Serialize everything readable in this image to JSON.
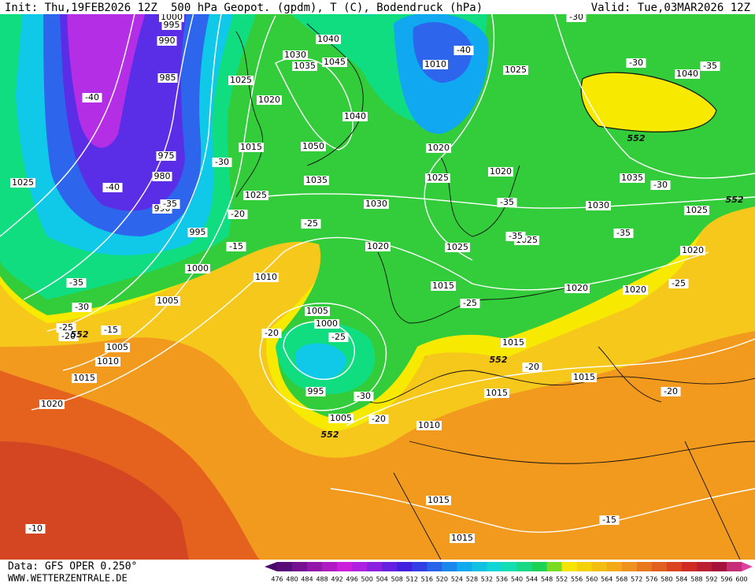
{
  "header": {
    "init": "Init: Thu,19FEB2026 12Z",
    "title": "500 hPa Geopot. (gpdm), T (C), Bodendruck (hPa)",
    "valid": "Valid: Tue,03MAR2026 12Z"
  },
  "footer": {
    "data": "Data: GFS OPER 0.250°",
    "site": "WWW.WETTERZENTRALE.DE"
  },
  "isobar_labels": [
    1000,
    995,
    990,
    985,
    975,
    980,
    990,
    995,
    1000,
    1005,
    1040,
    1030,
    1035,
    1045,
    1025,
    1020,
    1040,
    1050,
    1015,
    1035,
    1025,
    1030,
    1010,
    1025,
    1020,
    1020,
    1025,
    1025,
    1025,
    1020,
    1015,
    1010,
    1005,
    1000,
    995,
    1005,
    1010,
    1015,
    1015,
    1015,
    1020,
    1020,
    1020,
    1030,
    1025,
    1035,
    1040,
    1025,
    1005,
    1010,
    1015,
    1020,
    1015,
    1015
  ],
  "temperature_labels": [
    -30,
    -40,
    -30,
    -35,
    -40,
    -30,
    -40,
    -35,
    -20,
    -25,
    -15,
    -35,
    -35,
    -30,
    -35,
    -25,
    -35,
    -30,
    -25,
    -20,
    -15,
    -20,
    -25,
    -30,
    -20,
    -25,
    -20,
    -20,
    -10,
    -15
  ],
  "height_labels": [
    552,
    552,
    552,
    552,
    552
  ],
  "colorbar": [
    476,
    480,
    484,
    488,
    492,
    496,
    500,
    504,
    508,
    512,
    516,
    520,
    524,
    528,
    532,
    536,
    540,
    544,
    548,
    552,
    556,
    560,
    564,
    568,
    572,
    576,
    580,
    584,
    588,
    592,
    596,
    600
  ]
}
